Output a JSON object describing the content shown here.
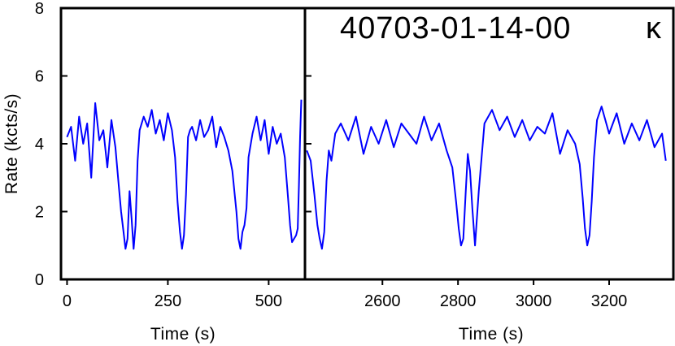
{
  "chart_data": {
    "type": "line",
    "title": "40703-01-14-00",
    "variability_class": "κ",
    "ylabel": "Rate (kcts/s)",
    "ylim": [
      0,
      8
    ],
    "y_ticks": [
      "0",
      "2",
      "4",
      "6",
      "8"
    ],
    "line_color": "#0000ff",
    "grid": false,
    "panels": [
      {
        "xlabel": "Time (s)",
        "xlim": [
          -15,
          590
        ],
        "x_ticks": [
          {
            "value": 0,
            "label": "0"
          },
          {
            "value": 250,
            "label": "250"
          },
          {
            "value": 500,
            "label": "500"
          }
        ],
        "series": {
          "x": [
            0,
            10,
            20,
            30,
            40,
            50,
            60,
            70,
            80,
            90,
            100,
            110,
            120,
            128,
            134,
            140,
            145,
            150,
            155,
            160,
            165,
            170,
            175,
            180,
            190,
            200,
            210,
            220,
            230,
            240,
            250,
            260,
            268,
            274,
            280,
            285,
            290,
            295,
            300,
            305,
            310,
            320,
            330,
            340,
            350,
            360,
            370,
            380,
            390,
            400,
            410,
            420,
            425,
            430,
            435,
            440,
            445,
            450,
            460,
            470,
            480,
            490,
            500,
            510,
            520,
            530,
            540,
            548,
            553,
            558,
            563,
            568,
            572,
            575,
            578,
            581
          ],
          "y": [
            4.2,
            4.5,
            3.5,
            4.8,
            4.0,
            4.6,
            3.0,
            5.2,
            4.1,
            4.4,
            3.3,
            4.7,
            3.9,
            2.8,
            2.0,
            1.4,
            0.9,
            1.2,
            2.6,
            1.8,
            0.9,
            1.6,
            3.5,
            4.4,
            4.8,
            4.5,
            5.0,
            4.3,
            4.7,
            4.1,
            4.9,
            4.4,
            3.6,
            2.3,
            1.4,
            0.9,
            1.3,
            2.5,
            4.2,
            4.4,
            4.5,
            4.1,
            4.7,
            4.2,
            4.4,
            4.8,
            3.9,
            4.5,
            4.2,
            3.8,
            3.2,
            2.0,
            1.2,
            0.9,
            1.4,
            1.6,
            2.1,
            3.6,
            4.3,
            4.8,
            4.1,
            4.7,
            3.7,
            4.5,
            4.0,
            4.3,
            3.6,
            2.4,
            1.6,
            1.1,
            1.2,
            1.3,
            1.5,
            2.8,
            4.2,
            5.3
          ]
        }
      },
      {
        "xlabel": "Time (s)",
        "xlim": [
          2395,
          3370
        ],
        "x_ticks": [
          {
            "value": 2600,
            "label": "2600"
          },
          {
            "value": 2800,
            "label": "2800"
          },
          {
            "value": 3000,
            "label": "3000"
          },
          {
            "value": 3200,
            "label": "3200"
          }
        ],
        "series": {
          "x": [
            2400,
            2410,
            2420,
            2428,
            2434,
            2440,
            2446,
            2452,
            2458,
            2465,
            2475,
            2490,
            2510,
            2530,
            2550,
            2570,
            2590,
            2610,
            2630,
            2650,
            2670,
            2690,
            2710,
            2730,
            2750,
            2770,
            2785,
            2795,
            2802,
            2808,
            2814,
            2820,
            2826,
            2832,
            2838,
            2845,
            2855,
            2870,
            2890,
            2910,
            2930,
            2950,
            2970,
            2990,
            3010,
            3030,
            3050,
            3070,
            3090,
            3110,
            3122,
            3130,
            3136,
            3142,
            3148,
            3154,
            3160,
            3168,
            3180,
            3200,
            3220,
            3240,
            3260,
            3280,
            3300,
            3320,
            3340,
            3350
          ],
          "y": [
            3.8,
            3.5,
            2.5,
            1.6,
            1.2,
            0.9,
            1.4,
            2.9,
            3.8,
            3.5,
            4.3,
            4.6,
            4.1,
            4.8,
            3.7,
            4.5,
            4.0,
            4.7,
            3.9,
            4.6,
            4.3,
            4.0,
            4.8,
            4.1,
            4.6,
            3.8,
            3.3,
            2.3,
            1.5,
            1.0,
            1.2,
            2.5,
            3.7,
            3.2,
            2.1,
            1.0,
            2.6,
            4.6,
            5.0,
            4.4,
            4.8,
            4.2,
            4.7,
            4.1,
            4.5,
            4.3,
            4.9,
            3.7,
            4.4,
            4.0,
            3.4,
            2.4,
            1.5,
            1.0,
            1.3,
            2.3,
            3.6,
            4.7,
            5.1,
            4.3,
            4.9,
            4.0,
            4.6,
            4.1,
            4.7,
            3.9,
            4.3,
            3.5
          ]
        }
      }
    ]
  }
}
